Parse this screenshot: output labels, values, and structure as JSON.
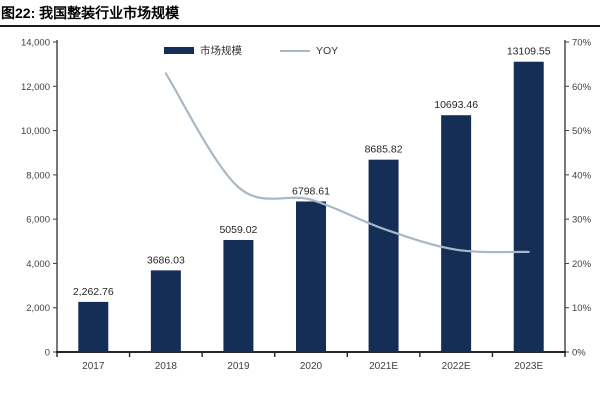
{
  "title": "图22: 我国整装行业市场规模",
  "colors": {
    "bar": "#152e55",
    "line": "#a9b8c6",
    "axis": "#3f3f3f",
    "text": "#3f3f3f",
    "label_text": "#262626",
    "title_rule": "#1a1a1a"
  },
  "chart_data": {
    "type": "bar",
    "title": "图22: 我国整装行业市场规模",
    "categories": [
      "2017",
      "2018",
      "2019",
      "2020",
      "2021E",
      "2022E",
      "2023E"
    ],
    "legend": [
      "市场规模",
      "YOY"
    ],
    "legend_position": "top",
    "grid": false,
    "series": [
      {
        "name": "市场规模",
        "type": "bar",
        "axis": "left",
        "values": [
          2262.76,
          3686.03,
          5059.02,
          6798.61,
          8685.82,
          10693.46,
          13109.55
        ],
        "labels": [
          "2,262.76",
          "3686.03",
          "5059.02",
          "6798.61",
          "8685.82",
          "10693.46",
          "13109.55"
        ]
      },
      {
        "name": "YOY",
        "type": "line",
        "axis": "right",
        "values": [
          null,
          62.9,
          37.2,
          34.4,
          27.8,
          23.1,
          22.6
        ]
      }
    ],
    "left_axis": {
      "min": 0,
      "max": 14000,
      "step": 2000,
      "tick_labels": [
        "0",
        "2,000",
        "4,000",
        "6,000",
        "8,000",
        "10,000",
        "12,000",
        "14,000"
      ]
    },
    "right_axis": {
      "min": 0,
      "max": 70,
      "step": 10,
      "tick_labels": [
        "0%",
        "10%",
        "20%",
        "30%",
        "40%",
        "50%",
        "60%",
        "70%"
      ]
    }
  }
}
